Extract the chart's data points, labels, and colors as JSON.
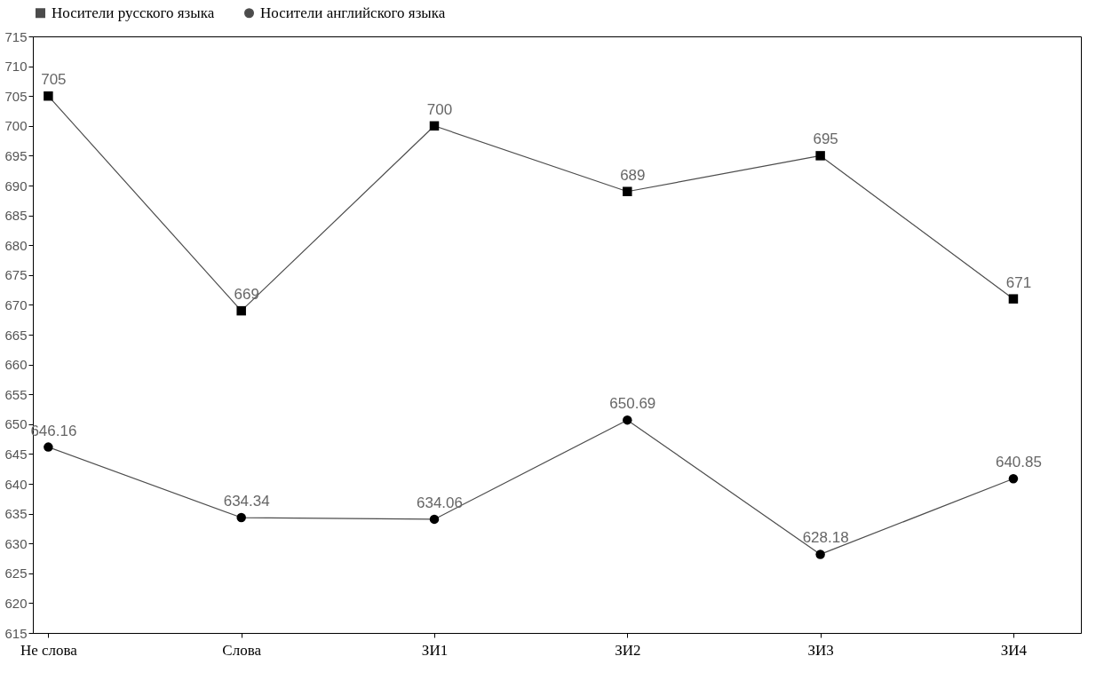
{
  "chart_data": {
    "type": "line",
    "categories": [
      "Не слова",
      "Слова",
      "ЗИ1",
      "ЗИ2",
      "ЗИ3",
      "ЗИ4"
    ],
    "series": [
      {
        "name": "Носители русского языка",
        "color": "#000000",
        "marker": "square",
        "values": [
          705,
          669,
          700,
          689,
          695,
          671
        ]
      },
      {
        "name": "Носители английского языка",
        "color": "#000000",
        "marker": "circle",
        "values": [
          646.16,
          634.34,
          634.06,
          650.69,
          628.18,
          640.85
        ]
      }
    ],
    "ylim": [
      615,
      715
    ],
    "yticks": [
      615,
      620,
      625,
      630,
      635,
      640,
      645,
      650,
      655,
      660,
      665,
      670,
      675,
      680,
      685,
      690,
      695,
      700,
      705,
      710,
      715
    ],
    "data_labels": true,
    "legend": "top left",
    "grid": false
  }
}
